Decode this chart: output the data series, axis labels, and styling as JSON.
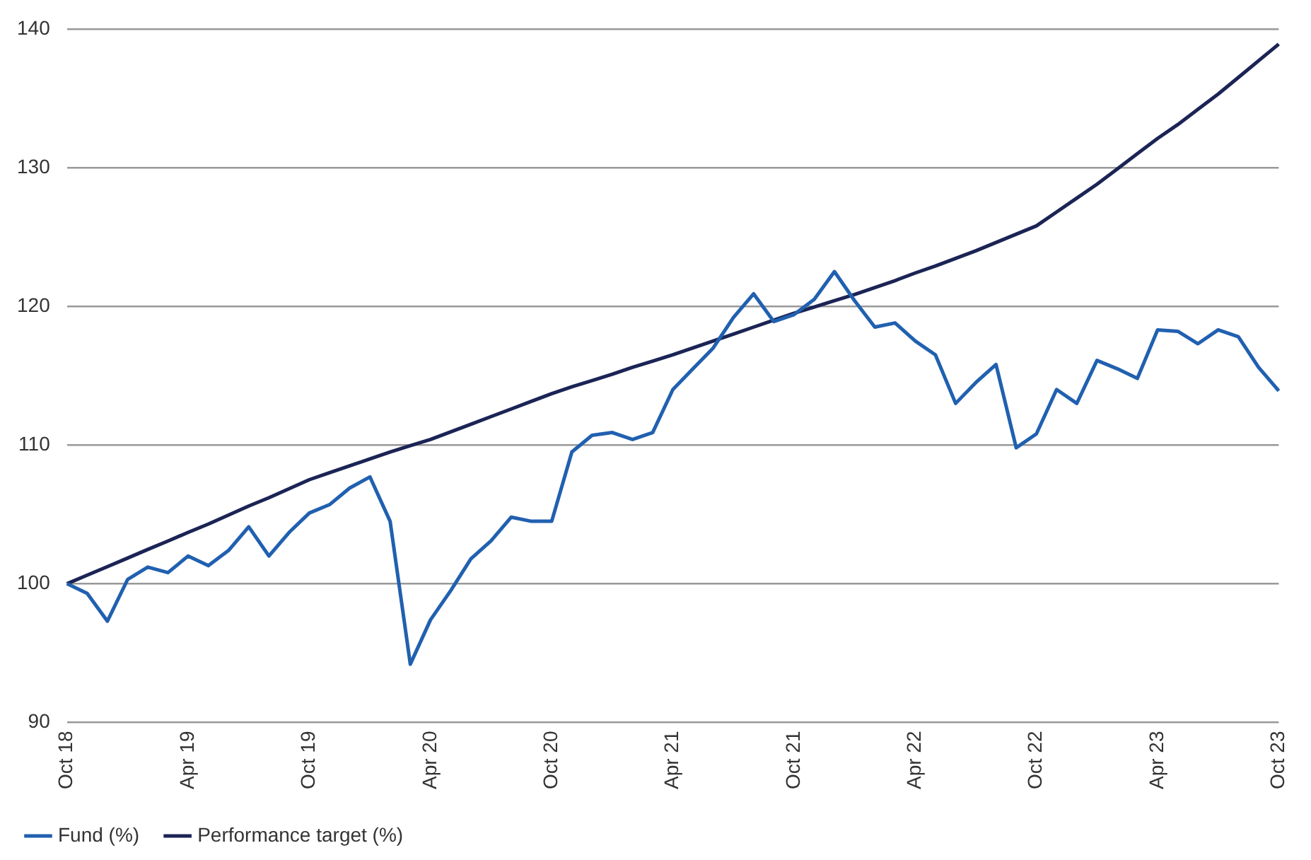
{
  "chart_data": {
    "type": "line",
    "categories": [
      "Oct 18",
      null,
      null,
      null,
      null,
      null,
      "Apr 19",
      null,
      null,
      null,
      null,
      null,
      "Oct 19",
      null,
      null,
      null,
      null,
      null,
      "Apr 20",
      null,
      null,
      null,
      null,
      null,
      "Oct 20",
      null,
      null,
      null,
      null,
      null,
      "Apr 21",
      null,
      null,
      null,
      null,
      null,
      "Oct 21",
      null,
      null,
      null,
      null,
      null,
      "Apr 22",
      null,
      null,
      null,
      null,
      null,
      "Oct 22",
      null,
      null,
      null,
      null,
      null,
      "Apr 23",
      null,
      null,
      null,
      null,
      null,
      "Oct 23"
    ],
    "series": [
      {
        "name": "Fund (%)",
        "color": "#2160b0",
        "values": [
          100,
          99.3,
          97.3,
          100.3,
          101.2,
          100.8,
          102,
          101.3,
          102.4,
          104.1,
          102,
          103.7,
          105.1,
          105.7,
          106.9,
          107.7,
          104.5,
          94.2,
          97.4,
          99.5,
          101.8,
          103.1,
          104.8,
          104.5,
          104.5,
          109.5,
          110.7,
          110.9,
          110.4,
          110.9,
          114,
          115.5,
          117,
          119.2,
          120.9,
          118.9,
          119.4,
          120.5,
          122.5,
          120.4,
          118.5,
          118.8,
          117.5,
          116.5,
          113,
          114.5,
          115.8,
          109.8,
          110.8,
          114,
          113,
          116.1,
          115.5,
          114.8,
          118.3,
          118.2,
          117.3,
          118.3,
          117.8,
          115.6,
          113.9
        ]
      },
      {
        "name": "Performance target (%)",
        "color": "#1b2455",
        "values": [
          100,
          100.62,
          101.23,
          101.85,
          102.47,
          103.08,
          103.7,
          104.3,
          104.95,
          105.6,
          106.2,
          106.85,
          107.5,
          108,
          108.5,
          109,
          109.5,
          109.95,
          110.4,
          110.95,
          111.5,
          112.05,
          112.6,
          113.15,
          113.7,
          114.2,
          114.65,
          115.1,
          115.6,
          116.05,
          116.5,
          117,
          117.5,
          118,
          118.5,
          119,
          119.5,
          119.95,
          120.4,
          120.85,
          121.35,
          121.85,
          122.4,
          122.9,
          123.45,
          124,
          124.6,
          125.2,
          125.8,
          126.8,
          127.8,
          128.8,
          129.9,
          131,
          132.1,
          133.1,
          134.2,
          135.3,
          136.5,
          137.7,
          138.9
        ]
      }
    ],
    "ylim": [
      90,
      140
    ],
    "yticks": [
      90,
      100,
      110,
      120,
      130,
      140
    ],
    "grid": "y",
    "legend": "bottom left",
    "marker": "none",
    "line_style": "solid"
  }
}
